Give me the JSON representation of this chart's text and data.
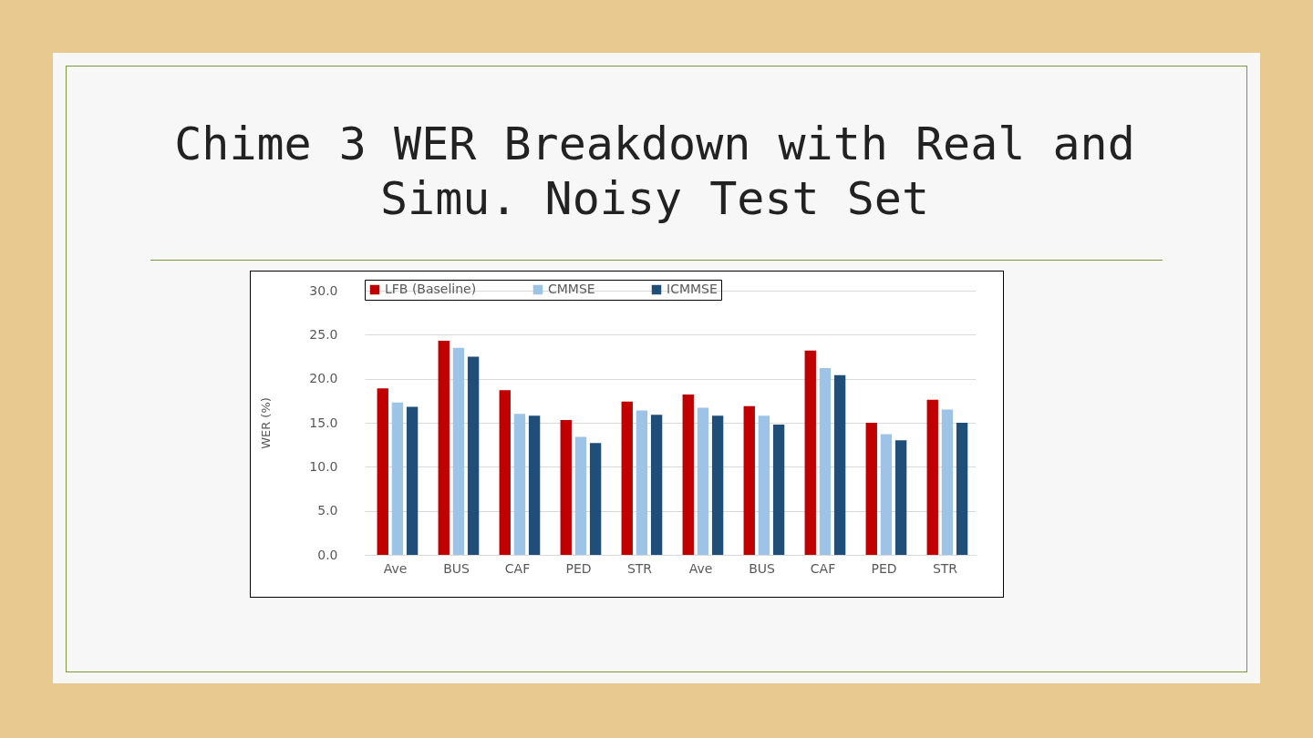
{
  "chart_data": {
    "type": "bar",
    "title": "Chime 3 WER Breakdown with Real and Simu. Noisy Test Set",
    "ylabel": "WER (%)",
    "categories": [
      "Ave",
      "BUS",
      "CAF",
      "PED",
      "STR",
      "Ave",
      "BUS",
      "CAF",
      "PED",
      "STR"
    ],
    "series": [
      {
        "name": "LFB (Baseline)",
        "color": "#c00000",
        "values": [
          18.9,
          24.3,
          18.7,
          15.3,
          17.4,
          18.2,
          16.9,
          23.2,
          15.0,
          17.6
        ]
      },
      {
        "name": "CMMSE",
        "color": "#9dc3e6",
        "values": [
          17.3,
          23.5,
          16.0,
          13.4,
          16.4,
          16.7,
          15.8,
          21.2,
          13.7,
          16.5
        ]
      },
      {
        "name": "ICMMSE",
        "color": "#1f4e79",
        "values": [
          16.8,
          22.5,
          15.8,
          12.7,
          15.9,
          15.8,
          14.8,
          20.4,
          13.0,
          15.0
        ]
      }
    ],
    "ylim": [
      0,
      30
    ],
    "yticks": [
      {
        "value": 0,
        "label": "0.0"
      },
      {
        "value": 5,
        "label": "5.0"
      },
      {
        "value": 10,
        "label": "10.0"
      },
      {
        "value": 15,
        "label": "15.0"
      },
      {
        "value": 20,
        "label": "20.0"
      },
      {
        "value": 25,
        "label": "25.0"
      },
      {
        "value": 30,
        "label": "30.0"
      }
    ],
    "grid": "y",
    "legend": "top"
  }
}
